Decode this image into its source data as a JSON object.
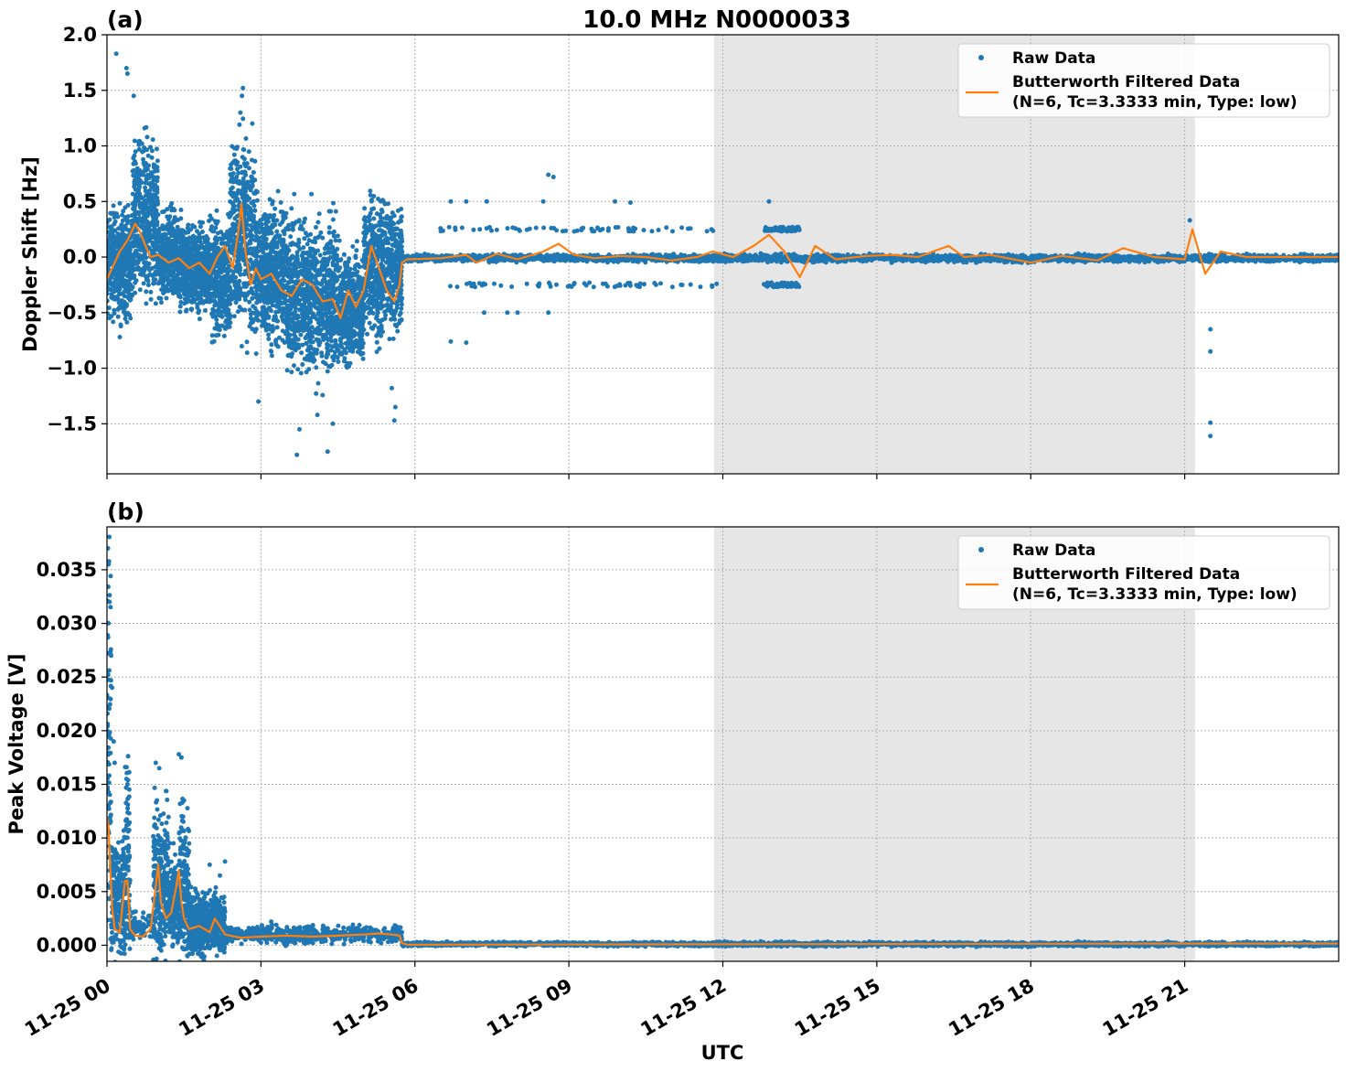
{
  "title": "10.0 MHz N0000033",
  "xlabel": "UTC",
  "legend": {
    "raw_label": "Raw Data",
    "filtered_label_line1": "Butterworth Filtered Data",
    "filtered_label_line2": "(N=6, Tc=3.3333 min, Type: low)"
  },
  "colors": {
    "raw": "#1f77b4",
    "filtered": "#ff7f0e",
    "shade": "#e6e6e6",
    "grid": "#b0b0b0"
  },
  "chart_data": [
    {
      "type": "scatter",
      "panel_label": "(a)",
      "ylabel": "Doppler Shift [Hz]",
      "x_units": "hours since 11-25 00:00 UTC",
      "xlim": [
        0,
        24
      ],
      "ylim": [
        -1.95,
        2.0
      ],
      "yticks": [
        -1.5,
        -1.0,
        -0.5,
        0.0,
        0.5,
        1.0,
        1.5,
        2.0
      ],
      "ytick_labels": [
        "−1.5",
        "−1.0",
        "−0.5",
        "0.0",
        "0.5",
        "1.0",
        "1.5",
        "2.0"
      ],
      "xticks": [
        0,
        3,
        6,
        9,
        12,
        15,
        18,
        21
      ],
      "shaded_region": [
        11.83,
        21.2
      ],
      "legend_position": "upper right",
      "grid": true,
      "series": [
        {
          "name": "Raw Data",
          "style": "points",
          "segments": [
            {
              "x_range": [
                0,
                0.5
              ],
              "center": -0.05,
              "spread": 0.7
            },
            {
              "x_range": [
                0.5,
                1.0
              ],
              "center": 0.3,
              "spread": 1.05
            },
            {
              "x_range": [
                1.0,
                1.5
              ],
              "center": 0.0,
              "spread": 0.6
            },
            {
              "x_range": [
                1.5,
                2.0
              ],
              "center": -0.1,
              "spread": 0.55
            },
            {
              "x_range": [
                2.0,
                2.4
              ],
              "center": -0.2,
              "spread": 0.75
            },
            {
              "x_range": [
                2.4,
                2.9
              ],
              "center": 0.2,
              "spread": 1.3
            },
            {
              "x_range": [
                2.9,
                3.5
              ],
              "center": -0.15,
              "spread": 0.9
            },
            {
              "x_range": [
                3.5,
                4.5
              ],
              "center": -0.35,
              "spread": 1.0
            },
            {
              "x_range": [
                4.5,
                5.0
              ],
              "center": -0.45,
              "spread": 0.7
            },
            {
              "x_range": [
                5.0,
                5.75
              ],
              "center": -0.1,
              "spread": 0.85
            },
            {
              "x_range": [
                5.75,
                24.0
              ],
              "center": -0.01,
              "spread": 0.05
            }
          ],
          "outliers": [
            [
              0.18,
              1.83
            ],
            [
              0.38,
              1.7
            ],
            [
              0.4,
              1.65
            ],
            [
              0.52,
              1.45
            ],
            [
              0.25,
              -0.72
            ],
            [
              2.65,
              1.52
            ],
            [
              2.63,
              1.45
            ],
            [
              2.6,
              1.3
            ],
            [
              3.7,
              -1.78
            ],
            [
              3.75,
              -1.55
            ],
            [
              4.3,
              -1.75
            ],
            [
              4.4,
              -1.5
            ],
            [
              4.1,
              -1.42
            ],
            [
              2.95,
              -1.3
            ],
            [
              5.6,
              -1.47
            ],
            [
              5.62,
              -1.35
            ],
            [
              5.55,
              -1.18
            ],
            [
              6.7,
              0.5
            ],
            [
              7.0,
              0.5
            ],
            [
              6.7,
              -0.76
            ],
            [
              7.0,
              -0.77
            ],
            [
              7.4,
              0.5
            ],
            [
              7.35,
              -0.5
            ],
            [
              8.6,
              0.74
            ],
            [
              8.7,
              0.72
            ],
            [
              8.5,
              0.5
            ],
            [
              8.6,
              -0.5
            ],
            [
              9.9,
              0.5
            ],
            [
              10.2,
              0.49
            ],
            [
              8.0,
              -0.5
            ],
            [
              7.8,
              -0.5
            ],
            [
              12.9,
              0.5
            ],
            [
              21.1,
              0.33
            ],
            [
              21.5,
              -0.65
            ],
            [
              21.5,
              -0.85
            ],
            [
              21.5,
              -1.49
            ],
            [
              21.5,
              -1.61
            ]
          ],
          "bands": [
            {
              "x_range": [
                6.5,
                11.9
              ],
              "y": 0.25
            },
            {
              "x_range": [
                6.5,
                11.9
              ],
              "y": -0.25
            },
            {
              "x_range": [
                12.8,
                13.5
              ],
              "y": 0.25
            },
            {
              "x_range": [
                12.8,
                13.5
              ],
              "y": -0.25
            }
          ]
        },
        {
          "name": "Butterworth Filtered Data",
          "style": "line",
          "x": [
            0,
            0.1,
            0.25,
            0.4,
            0.55,
            0.65,
            0.75,
            0.85,
            1.0,
            1.2,
            1.4,
            1.6,
            1.8,
            2.0,
            2.15,
            2.3,
            2.45,
            2.55,
            2.62,
            2.7,
            2.8,
            2.9,
            3.0,
            3.2,
            3.4,
            3.6,
            3.8,
            4.0,
            4.2,
            4.4,
            4.55,
            4.7,
            4.85,
            5.0,
            5.15,
            5.3,
            5.45,
            5.6,
            5.7,
            5.75,
            5.85,
            6.5,
            7.0,
            7.2,
            7.6,
            8.0,
            8.5,
            8.8,
            9.1,
            9.5,
            10.0,
            10.5,
            11.0,
            11.5,
            11.8,
            12.2,
            12.6,
            12.9,
            13.2,
            13.5,
            13.8,
            14.2,
            14.8,
            15.3,
            15.8,
            16.4,
            16.7,
            17.2,
            18.0,
            18.6,
            19.3,
            19.8,
            20.4,
            21.0,
            21.15,
            21.4,
            21.7,
            22.2,
            23.0,
            24.0
          ],
          "y": [
            -0.2,
            -0.1,
            0.05,
            0.15,
            0.3,
            0.22,
            0.1,
            0.0,
            0.02,
            -0.05,
            -0.01,
            -0.1,
            -0.05,
            -0.15,
            0.0,
            0.1,
            -0.1,
            0.2,
            0.48,
            0.05,
            -0.25,
            -0.1,
            -0.2,
            -0.15,
            -0.3,
            -0.35,
            -0.2,
            -0.25,
            -0.4,
            -0.38,
            -0.55,
            -0.3,
            -0.45,
            -0.3,
            0.1,
            -0.1,
            -0.3,
            -0.4,
            -0.25,
            -0.05,
            -0.02,
            -0.01,
            0.02,
            -0.05,
            0.03,
            -0.02,
            0.05,
            0.12,
            0.02,
            -0.01,
            0.01,
            0.0,
            -0.03,
            0.0,
            0.05,
            0.0,
            0.1,
            0.2,
            0.05,
            -0.18,
            0.1,
            -0.02,
            0.01,
            0.02,
            0.0,
            0.1,
            0.0,
            0.02,
            -0.05,
            0.01,
            -0.03,
            0.08,
            0.0,
            -0.02,
            0.25,
            -0.15,
            0.05,
            0.0,
            0.0,
            0.0
          ]
        }
      ]
    },
    {
      "type": "scatter",
      "panel_label": "(b)",
      "ylabel": "Peak Voltage [V]",
      "x_units": "hours since 11-25 00:00 UTC",
      "xlim": [
        0,
        24
      ],
      "ylim": [
        -0.0015,
        0.039
      ],
      "yticks": [
        0.0,
        0.005,
        0.01,
        0.015,
        0.02,
        0.025,
        0.03,
        0.035
      ],
      "ytick_labels": [
        "0.000",
        "0.005",
        "0.010",
        "0.015",
        "0.020",
        "0.025",
        "0.030",
        "0.035"
      ],
      "xticks": [
        0,
        3,
        6,
        9,
        12,
        15,
        18,
        21
      ],
      "xtick_labels": [
        "11-25 00",
        "11-25 03",
        "11-25 06",
        "11-25 09",
        "11-25 12",
        "11-25 15",
        "11-25 18",
        "11-25 21"
      ],
      "shaded_region": [
        11.83,
        21.2
      ],
      "legend_position": "upper right",
      "grid": true,
      "series": [
        {
          "name": "Raw Data",
          "style": "points",
          "segments": [
            {
              "x_range": [
                0,
                0.08
              ],
              "center": 0.02,
              "spread": 0.034
            },
            {
              "x_range": [
                0.08,
                0.35
              ],
              "center": 0.004,
              "spread": 0.008
            },
            {
              "x_range": [
                0.35,
                0.45
              ],
              "center": 0.007,
              "spread": 0.016
            },
            {
              "x_range": [
                0.45,
                0.9
              ],
              "center": 0.0018,
              "spread": 0.002
            },
            {
              "x_range": [
                0.9,
                1.2
              ],
              "center": 0.006,
              "spread": 0.011
            },
            {
              "x_range": [
                1.2,
                1.4
              ],
              "center": 0.004,
              "spread": 0.006
            },
            {
              "x_range": [
                1.4,
                1.6
              ],
              "center": 0.006,
              "spread": 0.011
            },
            {
              "x_range": [
                1.6,
                2.3
              ],
              "center": 0.002,
              "spread": 0.004
            },
            {
              "x_range": [
                2.3,
                5.75
              ],
              "center": 0.001,
              "spread": 0.0012
            },
            {
              "x_range": [
                5.75,
                24.0
              ],
              "center": 0.0001,
              "spread": 0.0003
            }
          ],
          "outliers": [
            [
              0.02,
              0.037
            ],
            [
              0.03,
              0.0355
            ],
            [
              0.05,
              0.032
            ],
            [
              0.08,
              0.027
            ],
            [
              0.1,
              0.024
            ],
            [
              0.13,
              0.019
            ],
            [
              0.15,
              0.017
            ],
            [
              0.38,
              0.0155
            ],
            [
              0.4,
              0.015
            ],
            [
              0.95,
              0.017
            ],
            [
              1.02,
              0.0165
            ],
            [
              1.4,
              0.0178
            ],
            [
              1.45,
              0.0175
            ],
            [
              1.5,
              0.0135
            ],
            [
              2.0,
              0.0075
            ],
            [
              2.3,
              0.0078
            ],
            [
              2.2,
              0.0065
            ],
            [
              3.2,
              0.0022
            ]
          ]
        },
        {
          "name": "Butterworth Filtered Data",
          "style": "line",
          "x": [
            0,
            0.03,
            0.06,
            0.1,
            0.15,
            0.25,
            0.35,
            0.4,
            0.45,
            0.55,
            0.7,
            0.85,
            0.95,
            1.0,
            1.05,
            1.15,
            1.25,
            1.35,
            1.4,
            1.45,
            1.5,
            1.6,
            1.8,
            2.0,
            2.1,
            2.3,
            2.6,
            3.0,
            3.5,
            4.0,
            4.5,
            5.0,
            5.3,
            5.55,
            5.7,
            5.75,
            5.85,
            10.0,
            16.0,
            21.0,
            24.0
          ],
          "y": [
            0.012,
            0.011,
            0.0075,
            0.0035,
            0.0015,
            0.0012,
            0.006,
            0.006,
            0.0015,
            0.0009,
            0.0008,
            0.0015,
            0.0055,
            0.0075,
            0.004,
            0.0025,
            0.003,
            0.0055,
            0.007,
            0.004,
            0.0025,
            0.0015,
            0.0018,
            0.0012,
            0.0025,
            0.001,
            0.0007,
            0.0008,
            0.0009,
            0.0008,
            0.0009,
            0.001,
            0.0011,
            0.001,
            0.0009,
            0.0002,
            5e-05,
            8e-05,
            0.00012,
            0.00015,
            0.00015
          ]
        }
      ]
    }
  ]
}
